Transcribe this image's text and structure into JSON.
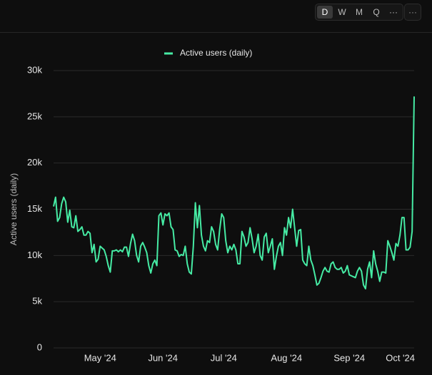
{
  "toolbar": {
    "intervals": [
      "D",
      "W",
      "M",
      "Q",
      "···"
    ],
    "menu": "···"
  },
  "chart_data": {
    "type": "line",
    "y_label": "Active users (daily)",
    "categories": [
      null,
      null,
      null,
      null,
      null,
      null,
      null,
      null,
      null,
      null,
      null,
      null,
      null,
      null,
      null,
      null,
      null,
      null,
      null,
      null,
      null,
      null,
      null,
      "May '24",
      null,
      null,
      null,
      null,
      null,
      null,
      null,
      null,
      null,
      null,
      null,
      null,
      null,
      null,
      null,
      null,
      null,
      null,
      null,
      null,
      null,
      null,
      null,
      null,
      null,
      null,
      null,
      null,
      null,
      null,
      "Jun '24",
      null,
      null,
      null,
      null,
      null,
      null,
      null,
      null,
      null,
      null,
      null,
      null,
      null,
      null,
      null,
      null,
      null,
      null,
      null,
      null,
      null,
      null,
      null,
      null,
      null,
      null,
      null,
      null,
      null,
      "Jul '24",
      null,
      null,
      null,
      null,
      null,
      null,
      null,
      null,
      null,
      null,
      null,
      null,
      null,
      null,
      null,
      null,
      null,
      null,
      null,
      null,
      null,
      null,
      null,
      null,
      null,
      null,
      null,
      null,
      null,
      null,
      "Aug '24",
      null,
      null,
      null,
      null,
      null,
      null,
      null,
      null,
      null,
      null,
      null,
      null,
      null,
      null,
      null,
      null,
      null,
      null,
      null,
      null,
      null,
      null,
      null,
      null,
      null,
      null,
      null,
      null,
      null,
      null,
      "Sep '24",
      null,
      null,
      null,
      null,
      null,
      null,
      null,
      null,
      null,
      null,
      null,
      null,
      null,
      null,
      null,
      null,
      null,
      null,
      null,
      null,
      null,
      null,
      null,
      null,
      null,
      null,
      null,
      null,
      null,
      "Oct '24",
      null,
      null
    ],
    "series": [
      {
        "name": "Active users (daily)",
        "color": "#46eba4",
        "values": [
          15300,
          16300,
          13700,
          14100,
          15600,
          16300,
          15800,
          13600,
          14900,
          13100,
          13000,
          14300,
          12600,
          12800,
          13100,
          12200,
          12200,
          12600,
          12400,
          10300,
          11200,
          9300,
          9600,
          11000,
          10800,
          10600,
          9900,
          8900,
          8200,
          10500,
          10500,
          10600,
          10400,
          10600,
          10400,
          10900,
          10900,
          9900,
          11300,
          12300,
          11600,
          10000,
          9300,
          11000,
          11400,
          10900,
          10300,
          8900,
          8100,
          9100,
          9500,
          8900,
          14300,
          14600,
          13300,
          14500,
          14300,
          14600,
          13100,
          12800,
          10600,
          10500,
          9900,
          10100,
          10000,
          11000,
          9100,
          8200,
          8000,
          11000,
          15700,
          13000,
          15400,
          12200,
          11000,
          10500,
          11600,
          11400,
          13100,
          12600,
          11200,
          10600,
          12800,
          14500,
          14100,
          11600,
          10300,
          11000,
          10600,
          11200,
          10600,
          9100,
          9100,
          12600,
          12000,
          11000,
          11400,
          13000,
          11800,
          10300,
          11000,
          12300,
          10000,
          9500,
          12000,
          12400,
          10300,
          11000,
          11800,
          8500,
          9900,
          11000,
          11400,
          10000,
          13000,
          12200,
          14100,
          13000,
          15000,
          13000,
          11000,
          12700,
          12800,
          9500,
          9100,
          8900,
          11000,
          9500,
          8900,
          7900,
          6800,
          7000,
          7600,
          8300,
          8700,
          8300,
          8200,
          9100,
          9300,
          8700,
          8500,
          8500,
          8700,
          8100,
          8300,
          8900,
          7900,
          7800,
          7700,
          7600,
          8300,
          8700,
          8300,
          6800,
          6400,
          8500,
          9300,
          7600,
          10500,
          9100,
          8300,
          7200,
          8200,
          8200,
          8100,
          11600,
          11000,
          10300,
          9500,
          11300,
          11000,
          12200,
          14100,
          14100,
          10600,
          10600,
          10900,
          12600,
          27200
        ]
      }
    ],
    "ylim": [
      0,
      30000
    ],
    "yticks": [
      0,
      {
        "value": 5000,
        "label": "5k"
      },
      {
        "value": 10000,
        "label": "10k"
      },
      {
        "value": 15000,
        "label": "15k"
      },
      {
        "value": 20000,
        "label": "20k"
      },
      {
        "value": 25000,
        "label": "25k"
      },
      {
        "value": 30000,
        "label": "30k"
      }
    ],
    "grid": true,
    "legend": "top"
  }
}
